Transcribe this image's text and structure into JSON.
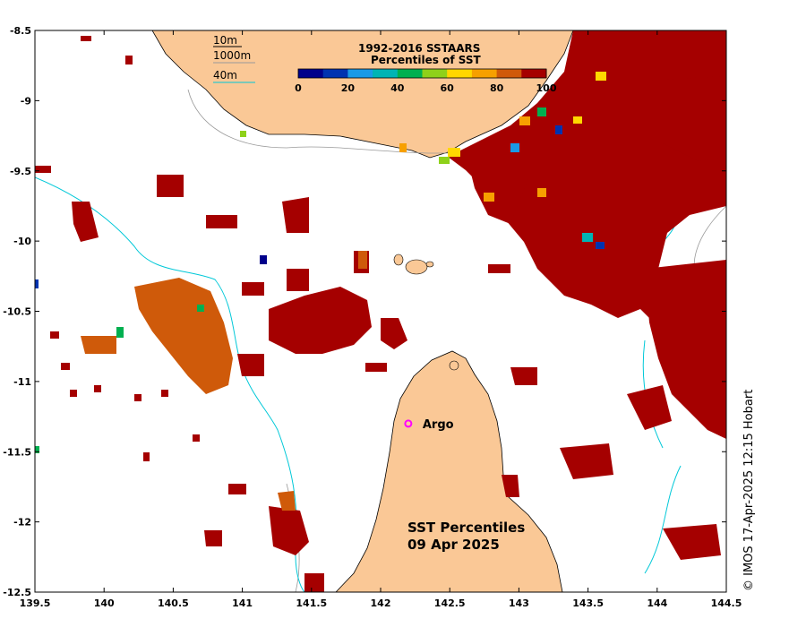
{
  "title_line1": "SST Percentiles",
  "title_line2": "09 Apr 2025",
  "credit": "© IMOS 17-Apr-2025 12:15 Hobart",
  "argo_label": "Argo",
  "depth_legend": {
    "label_10m": "10m",
    "label_1000m": "1000m",
    "label_40m": "40m",
    "color_10m": "#000000",
    "color_1000m": "#999999",
    "color_40m": "#00c8d8"
  },
  "colorbar": {
    "title_line1": "1992-2016 SSTAARS",
    "title_line2": "Percentiles of SST",
    "tick_labels": [
      "0",
      "20",
      "40",
      "60",
      "80",
      "100"
    ],
    "colors": [
      "#00008b",
      "#0033b0",
      "#1a9ae6",
      "#00b4b4",
      "#00b050",
      "#8ed11a",
      "#ffd700",
      "#f7a000",
      "#cf5a0a",
      "#a50000"
    ]
  },
  "colors": {
    "land": "#fac896",
    "ocean": "#ffffff",
    "hot": "#a50000",
    "warm": "#cf5a0a",
    "orange": "#f7a000",
    "argo": "#ff00ff"
  },
  "chart_data": {
    "type": "map",
    "x_range": [
      139.5,
      144.5
    ],
    "y_range": [
      -12.5,
      -8.5
    ],
    "x_ticks": [
      "139.5",
      "140",
      "140.5",
      "141",
      "141.5",
      "142",
      "142.5",
      "143",
      "143.5",
      "144",
      "144.5"
    ],
    "y_ticks": [
      "-8.5",
      "-9",
      "-9.5",
      "-10",
      "-10.5",
      "-11",
      "-11.5",
      "-12",
      "-12.5"
    ],
    "argo_position": {
      "lon": 142.2,
      "lat": -11.3
    }
  }
}
